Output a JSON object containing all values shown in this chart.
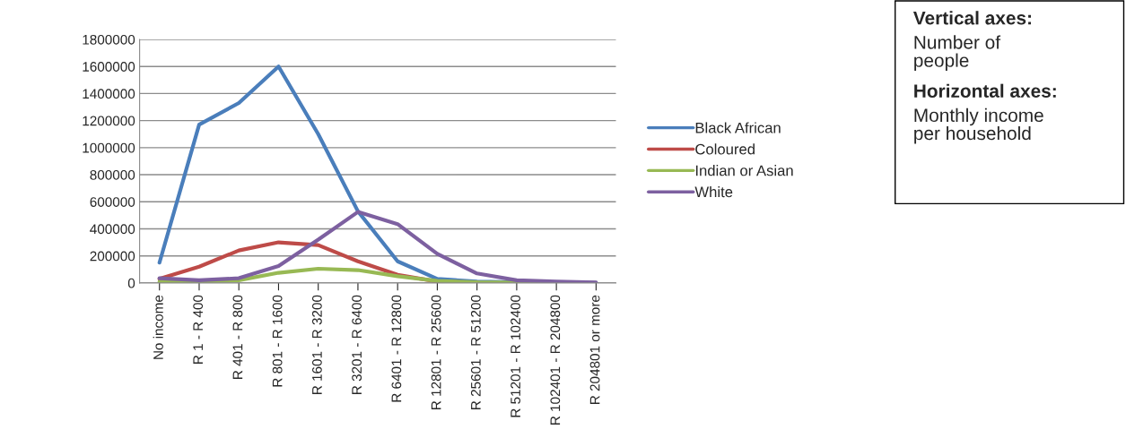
{
  "chart_data": {
    "type": "line",
    "categories": [
      "No income",
      "R 1 - R 400",
      "R 401 - R 800",
      "R 801 - R 1600",
      "R 1601 - R 3200",
      "R 3201 - R 6400",
      "R 6401 - R 12800",
      "R 12801 - R 25600",
      "R 25601 - R 51200",
      "R 51201 - R 102400",
      "R 102401 - R 204800",
      "R 204801 or more"
    ],
    "series": [
      {
        "name": "Black African",
        "color": "#4a7ebb",
        "values": [
          150000,
          1170000,
          1330000,
          1600000,
          1100000,
          530000,
          160000,
          30000,
          10000,
          5000,
          2000,
          1000
        ]
      },
      {
        "name": "Coloured",
        "color": "#be4b48",
        "values": [
          30000,
          120000,
          240000,
          300000,
          280000,
          160000,
          60000,
          10000,
          3000,
          null,
          null,
          null
        ]
      },
      {
        "name": "Indian or Asian",
        "color": "#98b954",
        "values": [
          10000,
          10000,
          20000,
          75000,
          105000,
          95000,
          50000,
          15000,
          5000,
          2000,
          1000,
          0
        ]
      },
      {
        "name": "White",
        "color": "#7d60a0",
        "values": [
          35000,
          20000,
          35000,
          125000,
          320000,
          525000,
          435000,
          215000,
          70000,
          20000,
          10000,
          3000
        ]
      }
    ],
    "ylim": [
      0,
      1800000
    ],
    "yticks": [
      0,
      200000,
      400000,
      600000,
      800000,
      1000000,
      1200000,
      1400000,
      1600000,
      1800000
    ],
    "grid": "y",
    "legend": "right",
    "marker": "none",
    "line_style": "solid",
    "annotations": [
      "Vertical axes:",
      "Number of\npeople",
      "Horizontal axes:",
      "Monthly income\nper household"
    ]
  }
}
